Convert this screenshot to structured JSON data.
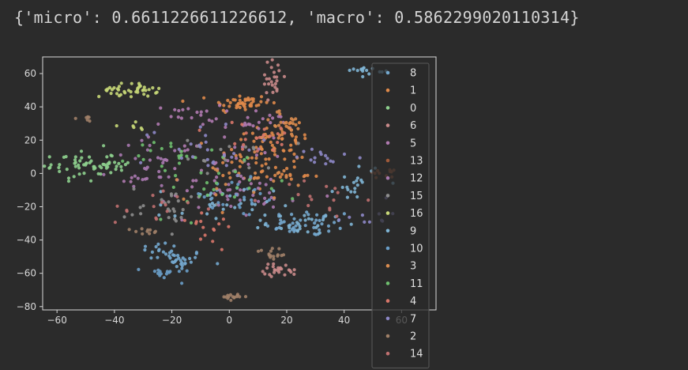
{
  "output": {
    "text": "{'micro': 0.6611226611226612, 'macro': 0.5862299020110314}"
  },
  "chart_data": {
    "type": "scatter",
    "title": "",
    "xlabel": "",
    "ylabel": "",
    "xlim": [
      -65,
      72
    ],
    "ylim": [
      -82,
      70
    ],
    "xticks": [
      -60,
      -40,
      -20,
      0,
      20,
      40,
      60
    ],
    "yticks": [
      -80,
      -60,
      -40,
      -20,
      0,
      20,
      40,
      60
    ],
    "xtick_labels": [
      "−60",
      "−40",
      "−20",
      "0",
      "20",
      "40",
      "60"
    ],
    "ytick_labels": [
      "−80",
      "−60",
      "−40",
      "−20",
      "0",
      "20",
      "40",
      "60"
    ],
    "legend_position": "right",
    "background": "#2b2b2b",
    "axis_color": "#d9d9d9",
    "series": [
      {
        "name": "8",
        "color": "#74a9cf",
        "clusters": [
          [
            -18,
            -52,
            5,
            3,
            30
          ],
          [
            28,
            -30,
            8,
            4,
            45
          ],
          [
            -25,
            -45,
            4,
            2,
            12
          ]
        ]
      },
      {
        "name": "1",
        "color": "#e08a4a",
        "clusters": [
          [
            4,
            42,
            5,
            3,
            45
          ],
          [
            18,
            22,
            6,
            6,
            40
          ],
          [
            10,
            10,
            8,
            8,
            40
          ],
          [
            20,
            0,
            6,
            4,
            20
          ]
        ]
      },
      {
        "name": "0",
        "color": "#8ed08e",
        "clusters": [
          [
            -52,
            5,
            6,
            5,
            50
          ],
          [
            -40,
            5,
            4,
            3,
            15
          ]
        ]
      },
      {
        "name": "6",
        "color": "#c98a8a",
        "clusters": [
          [
            15,
            58,
            2,
            6,
            25
          ],
          [
            18,
            -58,
            3,
            2,
            25
          ]
        ]
      },
      {
        "name": "5",
        "color": "#b07ab0",
        "clusters": [
          [
            -15,
            35,
            6,
            3,
            20
          ],
          [
            10,
            30,
            6,
            3,
            20
          ],
          [
            -5,
            0,
            14,
            12,
            50
          ]
        ]
      },
      {
        "name": "13",
        "color": "#a05a3a",
        "clusters": [
          [
            53,
            0,
            2,
            1,
            12
          ]
        ]
      },
      {
        "name": "12",
        "color": "#a879b0",
        "clusters": [
          [
            -25,
            5,
            8,
            8,
            30
          ],
          [
            8,
            -15,
            8,
            6,
            25
          ]
        ]
      },
      {
        "name": "15",
        "color": "#8e8e8e",
        "clusters": [
          [
            -20,
            -20,
            8,
            6,
            25
          ],
          [
            0,
            10,
            8,
            6,
            20
          ]
        ]
      },
      {
        "name": "16",
        "color": "#c8d878",
        "clusters": [
          [
            -35,
            50,
            5,
            2,
            40
          ],
          [
            -35,
            28,
            3,
            2,
            6
          ]
        ]
      },
      {
        "name": "9",
        "color": "#7fb5d5",
        "clusters": [
          [
            45,
            -5,
            4,
            6,
            20
          ],
          [
            48,
            62,
            3,
            1,
            15
          ],
          [
            25,
            -30,
            6,
            3,
            25
          ],
          [
            -5,
            -20,
            10,
            6,
            30
          ]
        ]
      },
      {
        "name": "10",
        "color": "#6a9fc9",
        "clusters": [
          [
            -22,
            -60,
            4,
            2,
            15
          ],
          [
            0,
            -15,
            10,
            6,
            25
          ]
        ]
      },
      {
        "name": "3",
        "color": "#d98c50",
        "clusters": [
          [
            20,
            30,
            5,
            4,
            20
          ],
          [
            5,
            0,
            10,
            8,
            25
          ]
        ]
      },
      {
        "name": "11",
        "color": "#6fc06f",
        "clusters": [
          [
            -5,
            -10,
            12,
            8,
            25
          ],
          [
            -20,
            10,
            8,
            6,
            20
          ]
        ]
      },
      {
        "name": "4",
        "color": "#d9776a",
        "clusters": [
          [
            10,
            20,
            8,
            6,
            20
          ],
          [
            -10,
            -30,
            8,
            6,
            15
          ]
        ]
      },
      {
        "name": "7",
        "color": "#8e88c8",
        "clusters": [
          [
            -10,
            15,
            10,
            8,
            25
          ],
          [
            35,
            10,
            6,
            4,
            15
          ],
          [
            48,
            -25,
            4,
            3,
            10
          ]
        ]
      },
      {
        "name": "2",
        "color": "#a08068",
        "clusters": [
          [
            2,
            -74,
            2,
            1,
            15
          ],
          [
            -28,
            -35,
            3,
            1,
            10
          ],
          [
            -50,
            33,
            2,
            1,
            6
          ],
          [
            15,
            -48,
            3,
            2,
            15
          ]
        ]
      },
      {
        "name": "14",
        "color": "#c07070",
        "clusters": [
          [
            -25,
            -20,
            8,
            6,
            15
          ],
          [
            30,
            -15,
            8,
            6,
            15
          ]
        ]
      }
    ]
  }
}
